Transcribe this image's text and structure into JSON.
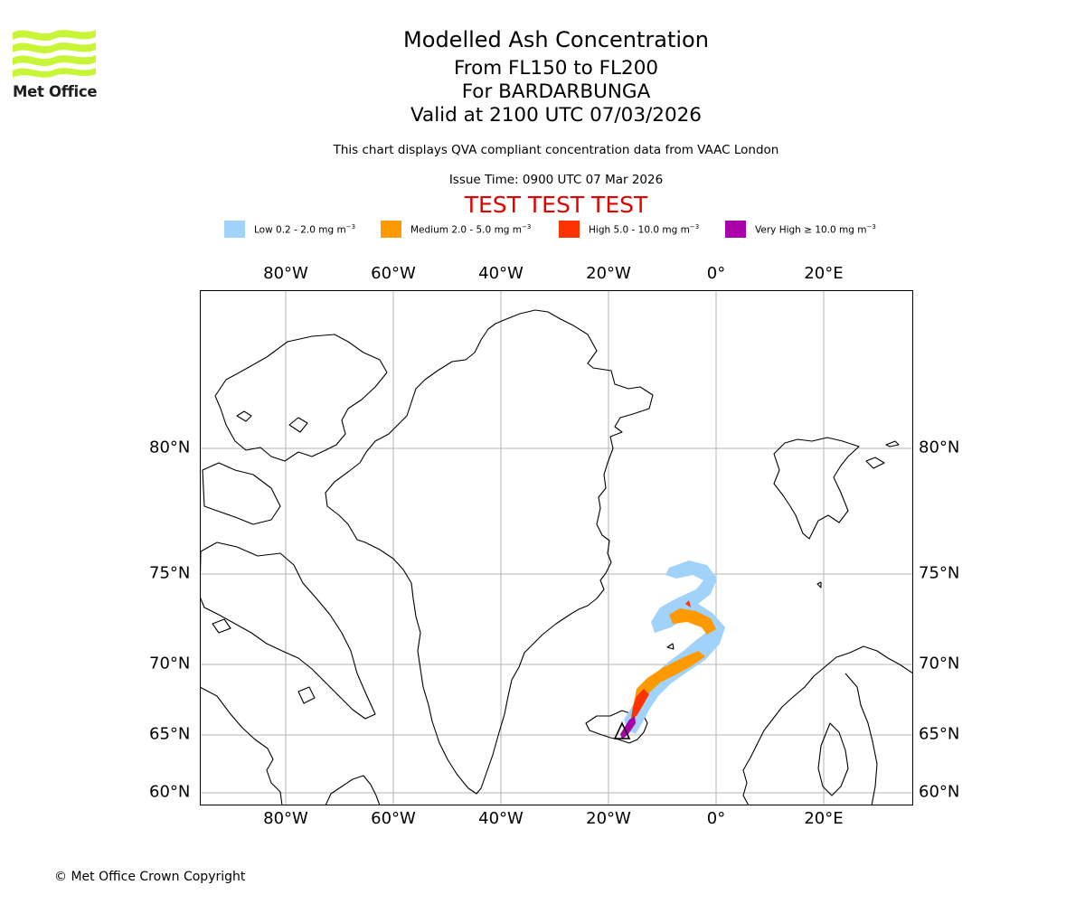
{
  "logo": {
    "name": "Met Office"
  },
  "header": {
    "title": "Modelled Ash Concentration",
    "level_range": "From FL150 to FL200",
    "volcano": "For BARDARBUNGA",
    "valid_time": "Valid at 2100 UTC 07/03/2026",
    "disclaimer": "This chart displays QVA compliant concentration data from VAAC London",
    "issue_time": "Issue Time: 0900 UTC 07 Mar 2026",
    "test_banner": "TEST TEST TEST"
  },
  "legend": [
    {
      "level": "Low",
      "range": "0.2 - 2.0",
      "unit": "mg m",
      "exp": "−3",
      "color": "#a0d2fa"
    },
    {
      "level": "Medium",
      "range": "2.0 - 5.0",
      "unit": "mg m",
      "exp": "−3",
      "color": "#ff9900"
    },
    {
      "level": "High",
      "range": "5.0 - 10.0",
      "unit": "mg m",
      "exp": "−3",
      "color": "#ff3300"
    },
    {
      "level": "Very High",
      "range": "≥  10.0",
      "unit": "mg m",
      "exp": "−3",
      "color": "#aa00aa"
    }
  ],
  "map": {
    "lon_labels": [
      "80°W",
      "60°W",
      "40°W",
      "20°W",
      "0°",
      "20°E"
    ],
    "lat_labels": [
      "80°N",
      "75°N",
      "70°N",
      "65°N",
      "60°N"
    ],
    "volcano_marker": "BARDARBUNGA"
  },
  "footer": {
    "copyright": "© Met Office Crown Copyright"
  }
}
